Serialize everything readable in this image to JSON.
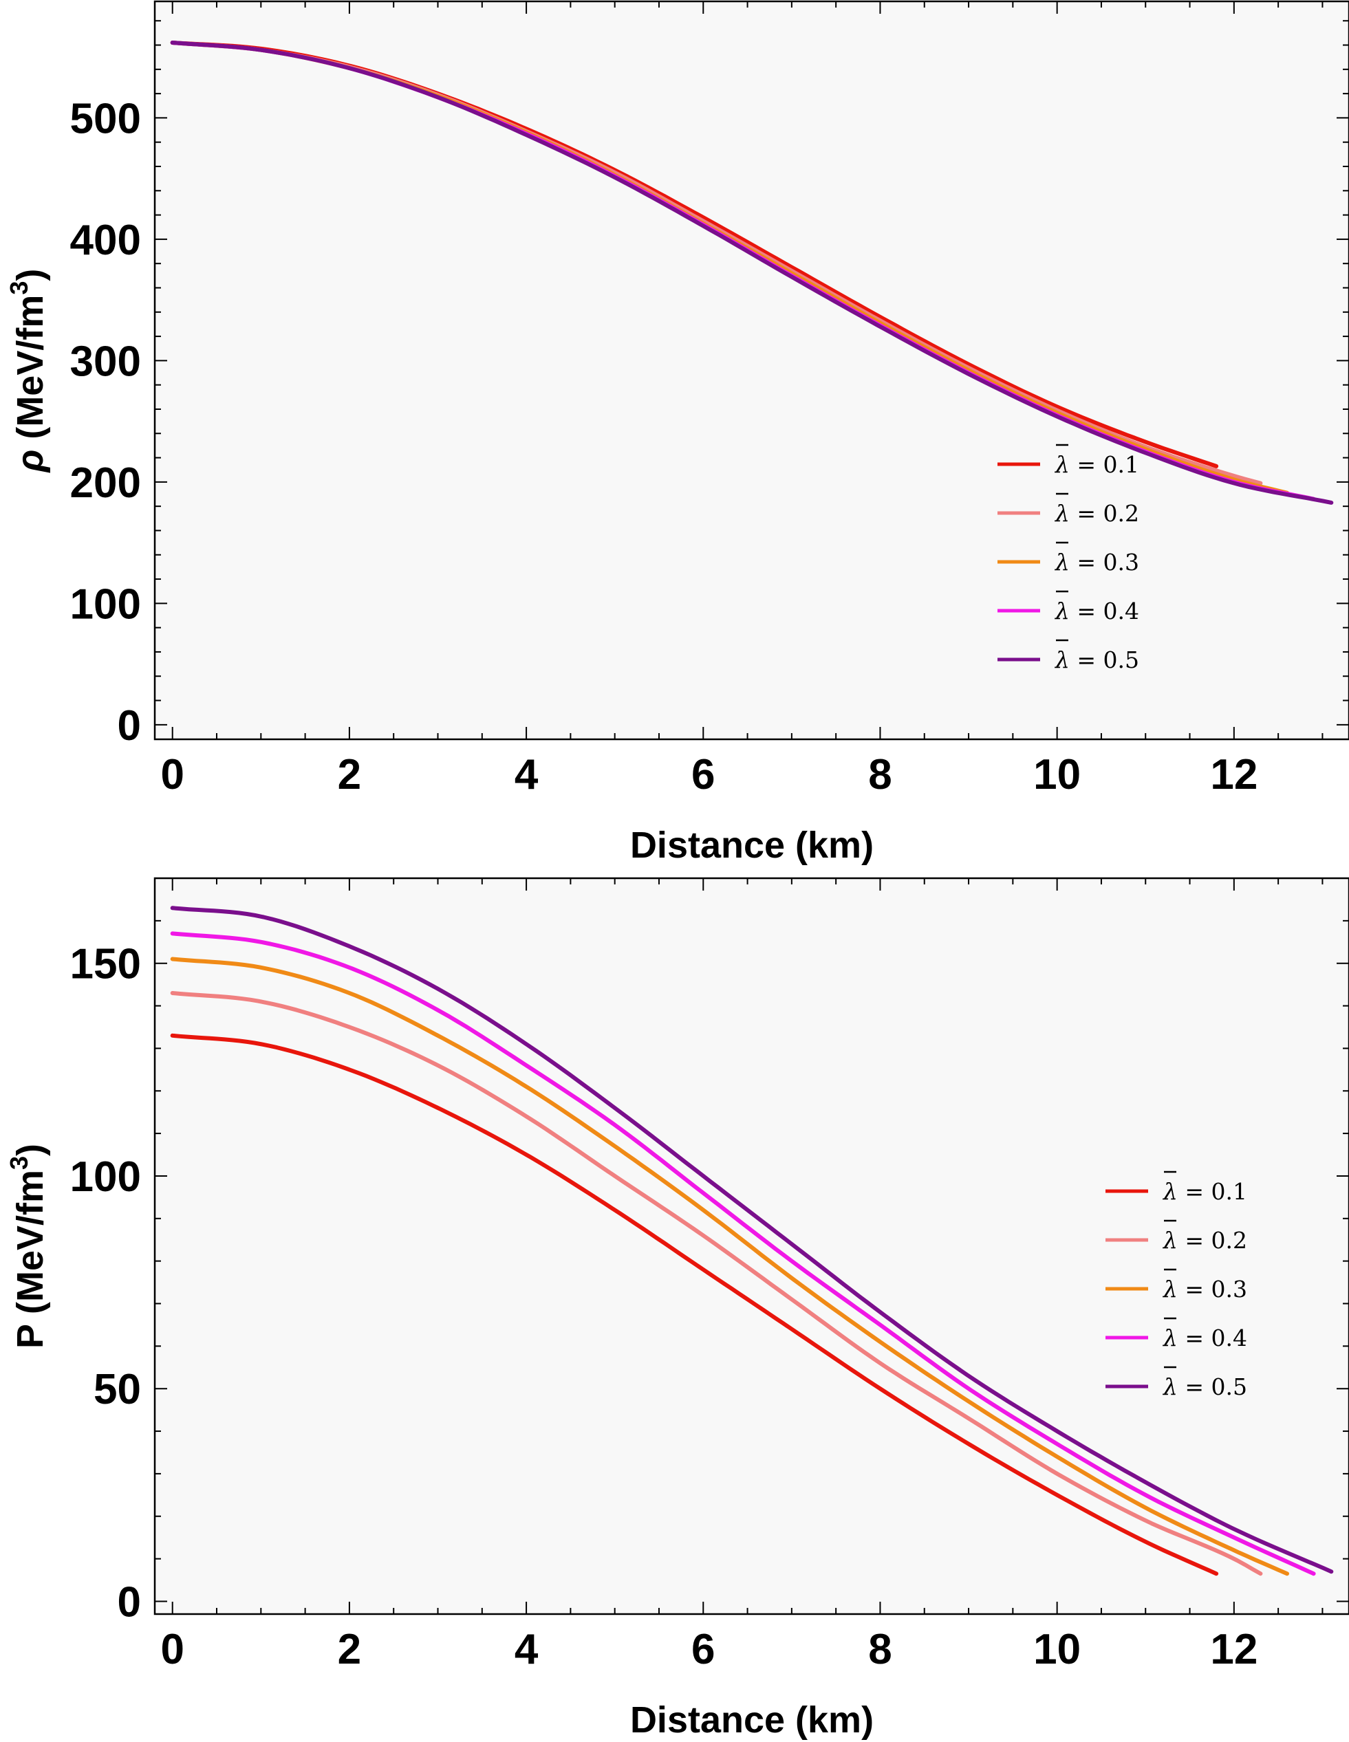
{
  "chart_data": [
    {
      "type": "line",
      "xlabel": "Distance (km)",
      "ylabel": "ρ (MeV/fm3)",
      "ylabel_symbol": "ρ",
      "ylabel_unit": " (MeV/fm",
      "ylabel_exp": "3",
      "ylabel_close": ")",
      "xlim": [
        -0.2,
        13.3
      ],
      "ylim": [
        -12,
        596
      ],
      "xticks": [
        0,
        2,
        4,
        6,
        8,
        10,
        12
      ],
      "yticks": [
        0,
        100,
        200,
        300,
        400,
        500
      ],
      "grid": false,
      "legend_position": "right",
      "series": [
        {
          "name": "λ̄ = 0.1",
          "legend_symbol": "λ",
          "legend_value": " = 0.1",
          "color": "#e8160c",
          "rmax": 11.8,
          "curve": [
            [
              0,
              562
            ],
            [
              1,
              557
            ],
            [
              2,
              543
            ],
            [
              3,
              520
            ],
            [
              4,
              491
            ],
            [
              5,
              457
            ],
            [
              6,
              418
            ],
            [
              7,
              377
            ],
            [
              8,
              336
            ],
            [
              9,
              297
            ],
            [
              10,
              262
            ],
            [
              11,
              233
            ],
            [
              11.8,
              213
            ]
          ]
        },
        {
          "name": "λ̄ = 0.2",
          "legend_symbol": "λ",
          "legend_value": " = 0.2",
          "color": "#f08080",
          "rmax": 12.3,
          "curve": [
            [
              0,
              562
            ],
            [
              1,
              556
            ],
            [
              2,
              542
            ],
            [
              3,
              519
            ],
            [
              4,
              489
            ],
            [
              5,
              455
            ],
            [
              6,
              415
            ],
            [
              7,
              374
            ],
            [
              8,
              333
            ],
            [
              9,
              294
            ],
            [
              10,
              259
            ],
            [
              11,
              229
            ],
            [
              12,
              205
            ],
            [
              12.3,
              199
            ]
          ]
        },
        {
          "name": "λ̄ = 0.3",
          "legend_symbol": "λ",
          "legend_value": " = 0.3",
          "color": "#f08a16",
          "rmax": 12.6,
          "curve": [
            [
              0,
              562
            ],
            [
              1,
              556
            ],
            [
              2,
              541
            ],
            [
              3,
              518
            ],
            [
              4,
              488
            ],
            [
              5,
              453
            ],
            [
              6,
              413
            ],
            [
              7,
              372
            ],
            [
              8,
              331
            ],
            [
              9,
              292
            ],
            [
              10,
              257
            ],
            [
              11,
              227
            ],
            [
              12,
              202
            ],
            [
              12.6,
              191
            ]
          ]
        },
        {
          "name": "λ̄ = 0.4",
          "legend_symbol": "λ",
          "legend_value": " = 0.4",
          "color": "#f018e6",
          "rmax": 12.9,
          "curve": [
            [
              0,
              562
            ],
            [
              1,
              556
            ],
            [
              2,
              541
            ],
            [
              3,
              517
            ],
            [
              4,
              487
            ],
            [
              5,
              452
            ],
            [
              6,
              412
            ],
            [
              7,
              370
            ],
            [
              8,
              329
            ],
            [
              9,
              290
            ],
            [
              10,
              255
            ],
            [
              11,
              225
            ],
            [
              12,
              200
            ],
            [
              12.9,
              186
            ]
          ]
        },
        {
          "name": "λ̄ = 0.5",
          "legend_symbol": "λ",
          "legend_value": " = 0.5",
          "color": "#7a0f8c",
          "rmax": 13.1,
          "curve": [
            [
              0,
              562
            ],
            [
              1,
              556
            ],
            [
              2,
              541
            ],
            [
              3,
              517
            ],
            [
              4,
              486
            ],
            [
              5,
              451
            ],
            [
              6,
              411
            ],
            [
              7,
              369
            ],
            [
              8,
              328
            ],
            [
              9,
              289
            ],
            [
              10,
              254
            ],
            [
              11,
              224
            ],
            [
              12,
              199
            ],
            [
              13.1,
              183
            ]
          ]
        }
      ]
    },
    {
      "type": "line",
      "xlabel": "Distance (km)",
      "ylabel": "P (MeV/fm3)",
      "ylabel_symbol": "P",
      "ylabel_unit": " (MeV/fm",
      "ylabel_exp": "3",
      "ylabel_close": ")",
      "xlim": [
        -0.2,
        13.3
      ],
      "ylim": [
        -3,
        170
      ],
      "xticks": [
        0,
        2,
        4,
        6,
        8,
        10,
        12
      ],
      "yticks": [
        0,
        50,
        100,
        150
      ],
      "grid": false,
      "legend_position": "right",
      "series": [
        {
          "name": "λ̄ = 0.1",
          "legend_symbol": "λ",
          "legend_value": " = 0.1",
          "color": "#e8160c",
          "rmax": 11.8,
          "curve": [
            [
              0,
              133
            ],
            [
              1,
              131
            ],
            [
              2,
              125
            ],
            [
              3,
              116
            ],
            [
              4,
              105
            ],
            [
              5,
              92
            ],
            [
              6,
              78
            ],
            [
              7,
              64
            ],
            [
              8,
              50
            ],
            [
              9,
              37
            ],
            [
              10,
              25
            ],
            [
              11,
              14
            ],
            [
              11.8,
              6.5
            ]
          ]
        },
        {
          "name": "λ̄ = 0.2",
          "legend_symbol": "λ",
          "legend_value": " = 0.2",
          "color": "#f08080",
          "rmax": 12.3,
          "curve": [
            [
              0,
              143
            ],
            [
              1,
              141
            ],
            [
              2,
              135
            ],
            [
              3,
              126
            ],
            [
              4,
              114
            ],
            [
              5,
              100
            ],
            [
              6,
              86
            ],
            [
              7,
              71
            ],
            [
              8,
              56
            ],
            [
              9,
              43
            ],
            [
              10,
              30
            ],
            [
              11,
              19
            ],
            [
              12,
              10
            ],
            [
              12.3,
              6.5
            ]
          ]
        },
        {
          "name": "λ̄ = 0.3",
          "legend_symbol": "λ",
          "legend_value": " = 0.3",
          "color": "#f08a16",
          "rmax": 12.6,
          "curve": [
            [
              0,
              151
            ],
            [
              1,
              149
            ],
            [
              2,
              143
            ],
            [
              3,
              133
            ],
            [
              4,
              121
            ],
            [
              5,
              107
            ],
            [
              6,
              92
            ],
            [
              7,
              76
            ],
            [
              8,
              61
            ],
            [
              9,
              47
            ],
            [
              10,
              34
            ],
            [
              11,
              22
            ],
            [
              12,
              12
            ],
            [
              12.6,
              6.5
            ]
          ]
        },
        {
          "name": "λ̄ = 0.4",
          "legend_symbol": "λ",
          "legend_value": " = 0.4",
          "color": "#f018e6",
          "rmax": 12.9,
          "curve": [
            [
              0,
              157
            ],
            [
              1,
              155
            ],
            [
              2,
              149
            ],
            [
              3,
              139
            ],
            [
              4,
              126
            ],
            [
              5,
              112
            ],
            [
              6,
              96
            ],
            [
              7,
              80
            ],
            [
              8,
              65
            ],
            [
              9,
              50
            ],
            [
              10,
              37
            ],
            [
              11,
              25
            ],
            [
              12,
              15
            ],
            [
              12.9,
              6.5
            ]
          ]
        },
        {
          "name": "λ̄ = 0.5",
          "legend_symbol": "λ",
          "legend_value": " = 0.5",
          "color": "#7a0f8c",
          "rmax": 13.1,
          "curve": [
            [
              0,
              163
            ],
            [
              1,
              161
            ],
            [
              2,
              154
            ],
            [
              3,
              144
            ],
            [
              4,
              131
            ],
            [
              5,
              116
            ],
            [
              6,
              100
            ],
            [
              7,
              84
            ],
            [
              8,
              68
            ],
            [
              9,
              53
            ],
            [
              10,
              40
            ],
            [
              11,
              28
            ],
            [
              12,
              17
            ],
            [
              13.1,
              7
            ]
          ]
        }
      ]
    }
  ]
}
